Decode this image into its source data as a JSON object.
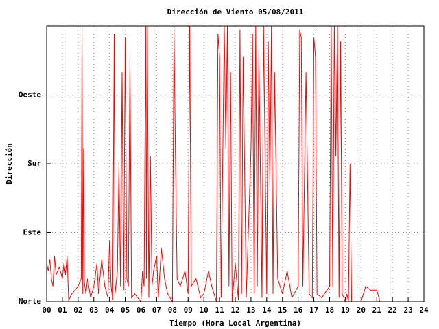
{
  "chart_data": {
    "type": "line",
    "title": "Dirección de Viento 05/08/2011",
    "xlabel": "Tiempo (Hora Local Argentina)",
    "ylabel": "Dirección",
    "xlim": [
      0,
      24
    ],
    "xticks": [
      {
        "value": 0,
        "label": "00"
      },
      {
        "value": 1,
        "label": "01"
      },
      {
        "value": 2,
        "label": "02"
      },
      {
        "value": 3,
        "label": "03"
      },
      {
        "value": 4,
        "label": "04"
      },
      {
        "value": 5,
        "label": "05"
      },
      {
        "value": 6,
        "label": "06"
      },
      {
        "value": 7,
        "label": "07"
      },
      {
        "value": 8,
        "label": "08"
      },
      {
        "value": 9,
        "label": "09"
      },
      {
        "value": 10,
        "label": "10"
      },
      {
        "value": 11,
        "label": "11"
      },
      {
        "value": 12,
        "label": "12"
      },
      {
        "value": 13,
        "label": "13"
      },
      {
        "value": 14,
        "label": "14"
      },
      {
        "value": 15,
        "label": "15"
      },
      {
        "value": 16,
        "label": "16"
      },
      {
        "value": 17,
        "label": "17"
      },
      {
        "value": 18,
        "label": "18"
      },
      {
        "value": 19,
        "label": "19"
      },
      {
        "value": 20,
        "label": "20"
      },
      {
        "value": 21,
        "label": "21"
      },
      {
        "value": 22,
        "label": "22"
      },
      {
        "value": 23,
        "label": "23"
      },
      {
        "value": 24,
        "label": "24"
      }
    ],
    "ylim": [
      0,
      360
    ],
    "yticks": [
      {
        "value": 0,
        "label": "Norte"
      },
      {
        "value": 90,
        "label": "Este"
      },
      {
        "value": 180,
        "label": "Sur"
      },
      {
        "value": 270,
        "label": "Oeste"
      }
    ],
    "grid": true,
    "series": [
      {
        "color": "#ff0000",
        "x": [
          0.0,
          0.1,
          0.2,
          0.3,
          0.4,
          0.5,
          0.6,
          0.8,
          1.0,
          1.1,
          1.2,
          1.3,
          1.4,
          1.6,
          2.0,
          2.2,
          2.25,
          2.3,
          2.35,
          2.4,
          2.5,
          2.6,
          2.8,
          3.0,
          3.2,
          3.3,
          3.5,
          3.7,
          3.9,
          4.0,
          4.1,
          4.2,
          4.3,
          4.35,
          4.5,
          4.6,
          4.7,
          4.8,
          4.9,
          5.0,
          5.1,
          5.2,
          5.3,
          5.4,
          5.6,
          6.0,
          6.1,
          6.2,
          6.3,
          6.35,
          6.4,
          6.5,
          6.6,
          6.7,
          6.8,
          7.0,
          7.1,
          7.3,
          7.5,
          7.7,
          8.0,
          8.1,
          8.2,
          8.3,
          8.5,
          8.8,
          9.0,
          9.1,
          9.2,
          9.5,
          9.8,
          10.0,
          10.3,
          10.5,
          10.8,
          10.9,
          11.0,
          11.1,
          11.3,
          11.4,
          11.5,
          11.6,
          11.7,
          11.8,
          12.0,
          12.2,
          12.3,
          12.4,
          12.5,
          12.7,
          13.0,
          13.1,
          13.2,
          13.3,
          13.4,
          13.5,
          13.7,
          13.8,
          14.0,
          14.1,
          14.2,
          14.3,
          14.4,
          14.5,
          14.7,
          15.0,
          15.3,
          15.6,
          16.0,
          16.1,
          16.2,
          16.3,
          16.5,
          16.7,
          16.9,
          17.0,
          17.1,
          17.2,
          17.5,
          18.0,
          18.1,
          18.2,
          18.3,
          18.4,
          18.5,
          18.6,
          18.7,
          18.8,
          19.0,
          19.1,
          19.2,
          19.3,
          19.4,
          20.0,
          20.3,
          20.6,
          21.0,
          21.2
        ],
        "values": [
          50,
          40,
          55,
          30,
          20,
          60,
          35,
          45,
          30,
          50,
          35,
          60,
          2,
          10,
          20,
          30,
          360,
          10,
          200,
          25,
          10,
          30,
          5,
          20,
          50,
          10,
          55,
          20,
          5,
          80,
          20,
          2,
          350,
          10,
          40,
          180,
          20,
          300,
          15,
          345,
          30,
          20,
          320,
          5,
          10,
          0,
          40,
          20,
          360,
          30,
          360,
          5,
          190,
          20,
          40,
          60,
          5,
          70,
          30,
          10,
          0,
          360,
          180,
          30,
          20,
          40,
          10,
          360,
          20,
          30,
          5,
          10,
          40,
          20,
          0,
          350,
          320,
          5,
          360,
          200,
          360,
          20,
          300,
          0,
          50,
          2,
          355,
          10,
          320,
          5,
          200,
          350,
          10,
          360,
          20,
          330,
          5,
          360,
          10,
          340,
          150,
          360,
          10,
          300,
          30,
          10,
          40,
          5,
          20,
          355,
          345,
          20,
          300,
          10,
          5,
          345,
          320,
          10,
          5,
          20,
          360,
          20,
          360,
          190,
          360,
          5,
          340,
          10,
          0,
          10,
          0,
          180,
          0,
          0,
          20,
          15,
          15,
          0
        ]
      }
    ]
  }
}
